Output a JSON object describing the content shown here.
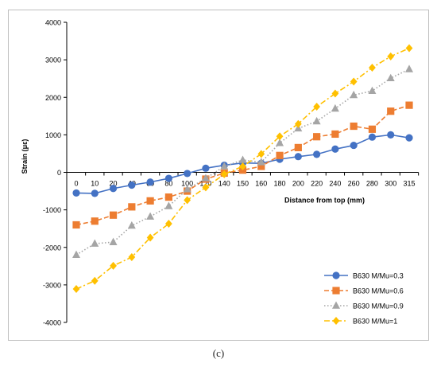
{
  "caption": "(c)",
  "chart_data": {
    "type": "line",
    "title": "",
    "xlabel": "Distance from top (mm)",
    "ylabel": "Strain (με)",
    "ylim": [
      -4000,
      4000
    ],
    "yticks": [
      -4000,
      -3000,
      -2000,
      -1000,
      0,
      1000,
      2000,
      3000,
      4000
    ],
    "categories": [
      "0",
      "10",
      "20",
      "40",
      "60",
      "80",
      "100",
      "120",
      "140",
      "150",
      "160",
      "180",
      "200",
      "220",
      "240",
      "260",
      "280",
      "300",
      "315"
    ],
    "grid": false,
    "legend_position": "bottom-right",
    "series": [
      {
        "name": "B630 M/Mu=0.3",
        "color": "#4472c4",
        "marker": "circle",
        "dash": "solid",
        "values": [
          -550,
          -560,
          -430,
          -340,
          -260,
          -160,
          -30,
          110,
          190,
          250,
          240,
          350,
          420,
          480,
          620,
          720,
          940,
          1000,
          920
        ]
      },
      {
        "name": "B630 M/Mu=0.6",
        "color": "#ed7d31",
        "marker": "square",
        "dash": "dashed",
        "values": [
          -1400,
          -1300,
          -1140,
          -920,
          -760,
          -660,
          -500,
          -180,
          -20,
          60,
          160,
          450,
          660,
          950,
          1020,
          1230,
          1150,
          1630,
          1790
        ]
      },
      {
        "name": "B630 M/Mu=0.9",
        "color": "#a5a5a5",
        "marker": "triangle",
        "dash": "dotted",
        "values": [
          -2200,
          -1900,
          -1860,
          -1420,
          -1180,
          -900,
          -450,
          -160,
          160,
          330,
          270,
          780,
          1170,
          1360,
          1700,
          2060,
          2170,
          2510,
          2750
        ]
      },
      {
        "name": "B630 M/Mu=1",
        "color": "#ffc000",
        "marker": "diamond",
        "dash": "dashdot",
        "values": [
          -3110,
          -2890,
          -2490,
          -2260,
          -1740,
          -1370,
          -740,
          -400,
          -50,
          160,
          490,
          960,
          1290,
          1750,
          2100,
          2420,
          2790,
          3090,
          3310
        ]
      }
    ]
  }
}
